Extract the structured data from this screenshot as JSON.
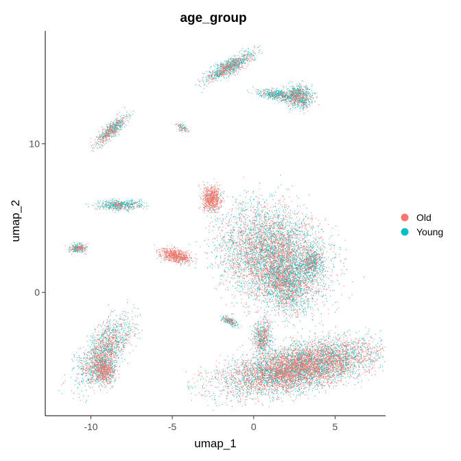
{
  "chart_data": {
    "type": "scatter",
    "title": "age_group",
    "xlabel": "umap_1",
    "ylabel": "umap_2",
    "xlim": [
      -12.8,
      8.1
    ],
    "ylim": [
      -8.3,
      17.6
    ],
    "x_ticks": [
      {
        "value": -10,
        "label": "-10"
      },
      {
        "value": -5,
        "label": "-5"
      },
      {
        "value": 0,
        "label": "0"
      },
      {
        "value": 5,
        "label": "5"
      }
    ],
    "y_ticks": [
      {
        "value": 0,
        "label": "0"
      },
      {
        "value": 10,
        "label": "10"
      }
    ],
    "grid": false,
    "legend_position": "right",
    "series": [
      {
        "name": "Old",
        "color": "#F8766D"
      },
      {
        "name": "Young",
        "color": "#00BFC4"
      }
    ],
    "clusters": [
      {
        "cx": 1.2,
        "cy": 2.4,
        "sx": 2.6,
        "sy": 3.3,
        "n": 5200,
        "old_frac": 0.52,
        "rot": 0.6
      },
      {
        "cx": 2.0,
        "cy": 0.6,
        "sx": 1.0,
        "sy": 1.6,
        "n": 900,
        "old_frac": 0.45,
        "rot": 0.3
      },
      {
        "cx": 2.8,
        "cy": -5.0,
        "sx": 4.2,
        "sy": 1.3,
        "n": 6500,
        "old_frac": 0.58,
        "rot": 0.22
      },
      {
        "cx": 0.5,
        "cy": -3.0,
        "sx": 0.5,
        "sy": 1.0,
        "n": 500,
        "old_frac": 0.55,
        "rot": 0.0
      },
      {
        "cx": 3.5,
        "cy": 2.0,
        "sx": 0.6,
        "sy": 1.0,
        "n": 500,
        "old_frac": 0.35,
        "rot": -0.3
      },
      {
        "cx": -9.2,
        "cy": -4.0,
        "sx": 1.0,
        "sy": 2.3,
        "n": 1500,
        "old_frac": 0.5,
        "rot": -0.55
      },
      {
        "cx": -9.2,
        "cy": -5.2,
        "sx": 0.6,
        "sy": 0.8,
        "n": 700,
        "old_frac": 0.7,
        "rot": 0.0
      },
      {
        "cx": -4.8,
        "cy": 2.5,
        "sx": 0.9,
        "sy": 0.4,
        "n": 650,
        "old_frac": 0.92,
        "rot": -0.2
      },
      {
        "cx": -2.6,
        "cy": 6.3,
        "sx": 0.5,
        "sy": 0.8,
        "n": 650,
        "old_frac": 0.9,
        "rot": 0.0
      },
      {
        "cx": -8.3,
        "cy": 5.9,
        "sx": 1.2,
        "sy": 0.3,
        "n": 500,
        "old_frac": 0.3,
        "rot": 0.0
      },
      {
        "cx": -8.8,
        "cy": 10.9,
        "sx": 0.35,
        "sy": 1.2,
        "n": 550,
        "old_frac": 0.5,
        "rot": -0.75
      },
      {
        "cx": -10.8,
        "cy": 3.0,
        "sx": 0.5,
        "sy": 0.25,
        "n": 250,
        "old_frac": 0.5,
        "rot": 0.0
      },
      {
        "cx": -1.5,
        "cy": 15.2,
        "sx": 1.5,
        "sy": 0.4,
        "n": 900,
        "old_frac": 0.4,
        "rot": 0.55
      },
      {
        "cx": 1.5,
        "cy": 13.3,
        "sx": 1.2,
        "sy": 0.3,
        "n": 500,
        "old_frac": 0.3,
        "rot": -0.15
      },
      {
        "cx": 2.8,
        "cy": 13.2,
        "sx": 0.7,
        "sy": 0.7,
        "n": 700,
        "old_frac": 0.35,
        "rot": 0.0
      },
      {
        "cx": -4.4,
        "cy": 11.1,
        "sx": 0.4,
        "sy": 0.2,
        "n": 80,
        "old_frac": 0.5,
        "rot": -0.6
      },
      {
        "cx": -1.5,
        "cy": -1.9,
        "sx": 0.5,
        "sy": 0.2,
        "n": 180,
        "old_frac": 0.4,
        "rot": -0.5
      }
    ]
  }
}
